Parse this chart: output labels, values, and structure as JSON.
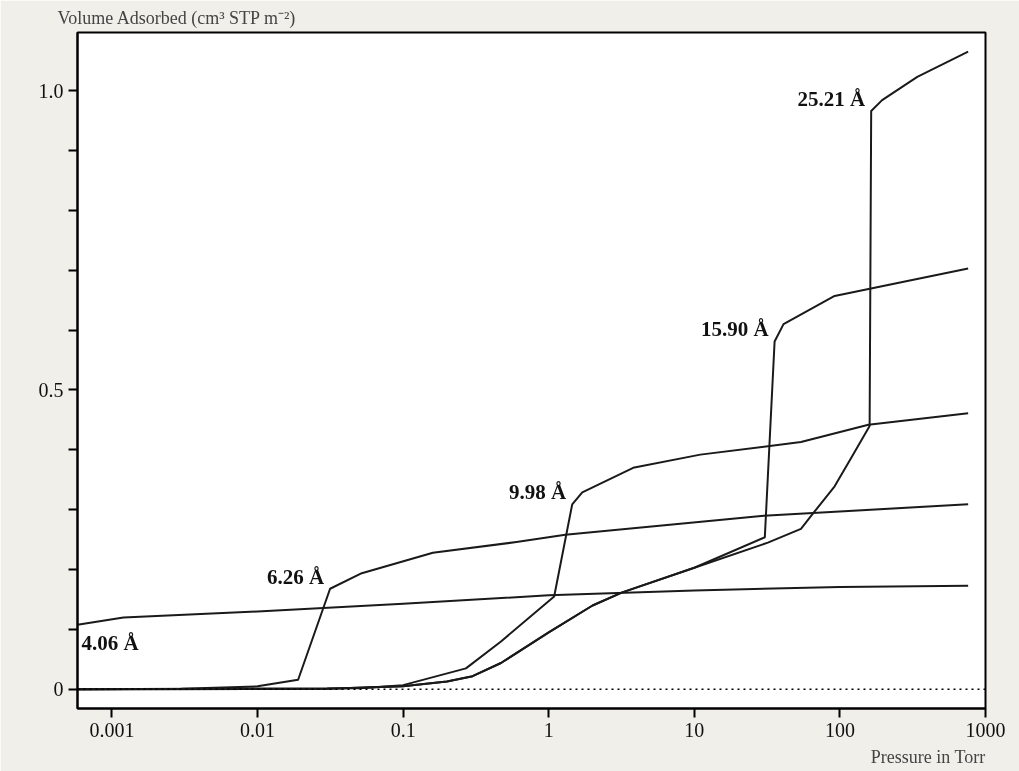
{
  "chart_data": {
    "type": "line",
    "xlabel": "Pressure in Torr",
    "ylabel": "Volume Adsorbed (cm³ STP m⁻²)",
    "log": "x",
    "grid": false,
    "marker": "none",
    "line_style": "solid",
    "xlim": [
      0.00058,
      1000
    ],
    "ylim": [
      -0.032,
      1.097
    ],
    "xticks": [
      0.001,
      0.01,
      0.1,
      1,
      10,
      100,
      1000
    ],
    "yticks": [
      0,
      {
        "value": 0.1,
        "label": null
      },
      {
        "value": 0.2,
        "label": null
      },
      {
        "value": 0.3,
        "label": null
      },
      {
        "value": 0.4,
        "label": null
      },
      0.5,
      {
        "value": 0.6,
        "label": null
      },
      {
        "value": 0.7,
        "label": null
      },
      {
        "value": 0.8,
        "label": null
      },
      {
        "value": 0.9,
        "label": null
      },
      {
        "value": 1,
        "label": "1.0"
      }
    ],
    "ref_lines": [
      {
        "axis": "y",
        "value": 0,
        "line_style": "dotted",
        "color": "#000000"
      }
    ],
    "series": [
      {
        "name": "4.06 Å",
        "color": "#1a1a1a",
        "x": [
          0.00058,
          0.0012,
          0.01,
          0.1,
          1,
          10,
          100,
          760
        ],
        "values": [
          0.108,
          0.12,
          0.13,
          0.143,
          0.157,
          0.165,
          0.171,
          0.173
        ]
      },
      {
        "name": "6.26 Å",
        "color": "#1a1a1a",
        "x": [
          0.00058,
          0.003,
          0.01,
          0.019,
          0.0315,
          0.052,
          0.16,
          0.6,
          1.3,
          30,
          760
        ],
        "values": [
          0.0,
          0.001,
          0.005,
          0.016,
          0.168,
          0.194,
          0.228,
          0.246,
          0.258,
          0.29,
          0.309
        ]
      },
      {
        "name": "9.98 Å",
        "color": "#1a1a1a",
        "x": [
          0.00058,
          0.05,
          0.1,
          0.27,
          0.47,
          1.09,
          1.45,
          1.7,
          3.8,
          11,
          54,
          157,
          760
        ],
        "values": [
          0.0,
          0.002,
          0.007,
          0.035,
          0.08,
          0.155,
          0.309,
          0.329,
          0.37,
          0.392,
          0.413,
          0.442,
          0.461
        ]
      },
      {
        "name": "15.90 Å",
        "color": "#1a1a1a",
        "x": [
          0.00058,
          0.03,
          0.1,
          0.2,
          0.3,
          0.47,
          1,
          2,
          3.2,
          10,
          30.5,
          35.6,
          41,
          92,
          264,
          760
        ],
        "values": [
          0.0,
          0.001,
          0.005,
          0.013,
          0.022,
          0.044,
          0.095,
          0.14,
          0.162,
          0.203,
          0.254,
          0.581,
          0.61,
          0.657,
          0.68,
          0.703
        ]
      },
      {
        "name": "25.21 Å",
        "color": "#1a1a1a",
        "x": [
          0.00058,
          0.03,
          0.1,
          0.2,
          0.3,
          0.47,
          1,
          2,
          3.2,
          10,
          32,
          54,
          66,
          92,
          120,
          160,
          164,
          195,
          340,
          760
        ],
        "values": [
          0.0,
          0.001,
          0.005,
          0.013,
          0.022,
          0.044,
          0.095,
          0.14,
          0.162,
          0.203,
          0.245,
          0.268,
          0.295,
          0.339,
          0.387,
          0.44,
          0.966,
          0.984,
          1.023,
          1.065
        ]
      }
    ]
  }
}
